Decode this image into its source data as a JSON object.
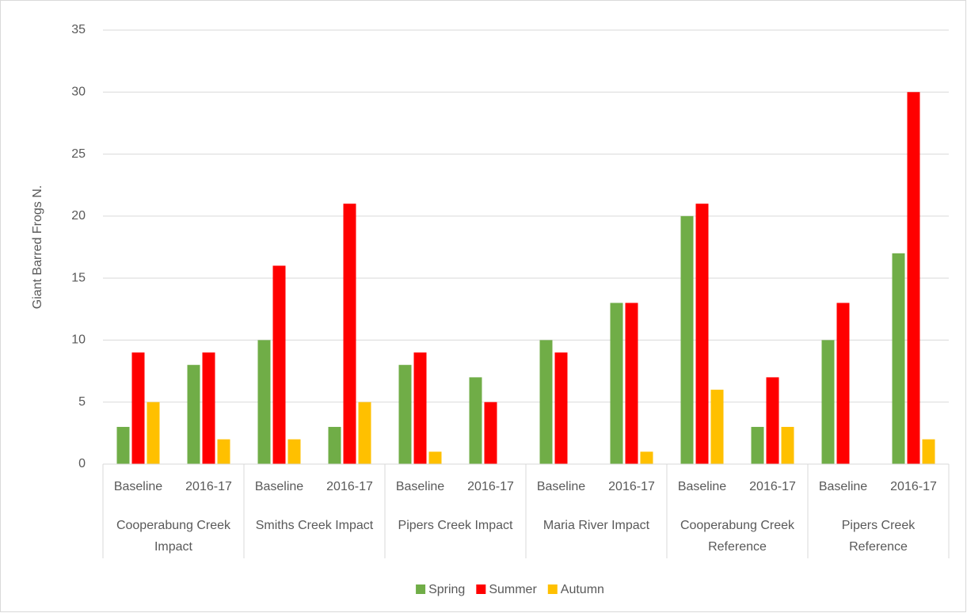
{
  "chart_data": {
    "type": "bar",
    "y_label": "Giant Barred Frogs N.",
    "categories": [
      "Baseline",
      "2016-17",
      "Baseline",
      "2016-17",
      "Baseline",
      "2016-17",
      "Baseline",
      "2016-17",
      "Baseline",
      "2016-17",
      "Baseline",
      "2016-17"
    ],
    "groups": [
      "Cooperabung Creek Impact",
      "Smiths Creek Impact",
      "Pipers Creek Impact",
      "Maria River Impact",
      "Cooperabung Creek Reference",
      "Pipers Creek Reference"
    ],
    "series": [
      {
        "name": "Spring",
        "color": "#70ad47",
        "values": [
          3,
          8,
          10,
          3,
          8,
          7,
          10,
          13,
          20,
          3,
          10,
          17
        ]
      },
      {
        "name": "Summer",
        "color": "#ff0000",
        "values": [
          9,
          9,
          16,
          21,
          9,
          5,
          9,
          13,
          21,
          7,
          13,
          30
        ]
      },
      {
        "name": "Autumn",
        "color": "#ffc000",
        "values": [
          5,
          2,
          2,
          5,
          1,
          0,
          0,
          1,
          6,
          3,
          0,
          2
        ]
      }
    ],
    "ylim": [
      0,
      35
    ],
    "yticks": [
      0,
      5,
      10,
      15,
      20,
      25,
      30,
      35
    ],
    "grid": true,
    "legend": "bottom"
  }
}
